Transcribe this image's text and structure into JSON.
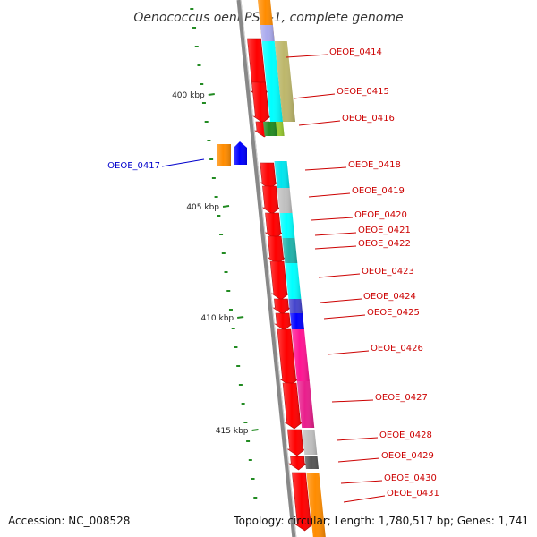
{
  "title": "Oenococcus oeni PSU-1, complete genome",
  "footer": {
    "accession": "Accession: NC_008528",
    "topology": "Topology: circular; Length: 1,780,517 bp; Genes: 1,741"
  },
  "colors": {
    "backbone": "#888888",
    "strand_arrow": "#ff0000",
    "ruler_tick": "#228b22",
    "label_red": "#cc0000",
    "label_blue": "#0000cc"
  },
  "ruler_labels": [
    "400 kbp",
    "405 kbp",
    "410 kbp",
    "415 kbp"
  ],
  "genes": [
    {
      "name": "OEOE_0414",
      "color": "#cc0000",
      "cog_color": "#bdb76b"
    },
    {
      "name": "OEOE_0415",
      "color": "#cc0000",
      "cog_color": "#bdb76b"
    },
    {
      "name": "OEOE_0416",
      "color": "#cc0000",
      "cog_color": "#9acd32"
    },
    {
      "name": "OEOE_0417",
      "color": "#0000cc",
      "cog_color": "#0000ff"
    },
    {
      "name": "OEOE_0418",
      "color": "#cc0000",
      "cog_color": "#00e5ee"
    },
    {
      "name": "OEOE_0419",
      "color": "#cc0000",
      "cog_color": "#bbbbbb"
    },
    {
      "name": "OEOE_0420",
      "color": "#cc0000",
      "cog_color": "#00ffff"
    },
    {
      "name": "OEOE_0421",
      "color": "#cc0000",
      "cog_color": "#00ffff"
    },
    {
      "name": "OEOE_0422",
      "color": "#cc0000",
      "cog_color": "#20b2aa"
    },
    {
      "name": "OEOE_0423",
      "color": "#cc0000",
      "cog_color": "#00ffff"
    },
    {
      "name": "OEOE_0424",
      "color": "#cc0000",
      "cog_color": "#4444cc"
    },
    {
      "name": "OEOE_0425",
      "color": "#cc0000",
      "cog_color": "#0000ff"
    },
    {
      "name": "OEOE_0426",
      "color": "#cc0000",
      "cog_color": "#ff1493"
    },
    {
      "name": "OEOE_0427",
      "color": "#cc0000",
      "cog_color": "#ff1493"
    },
    {
      "name": "OEOE_0428",
      "color": "#cc0000",
      "cog_color": "#c0c0c0"
    },
    {
      "name": "OEOE_0429",
      "color": "#cc0000",
      "cog_color": "#555555"
    },
    {
      "name": "OEOE_0430",
      "color": "#cc0000",
      "cog_color": "#ff8c00"
    },
    {
      "name": "OEOE_0431",
      "color": "#cc0000",
      "cog_color": "#ff8c00"
    }
  ]
}
